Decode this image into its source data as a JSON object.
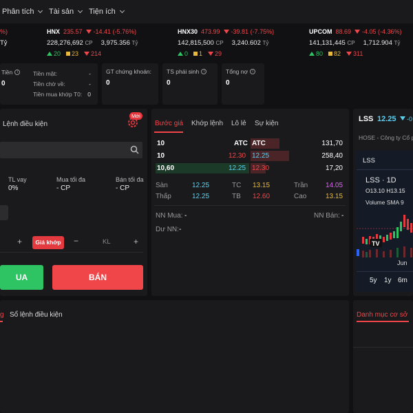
{
  "nav": {
    "items": [
      "Phân tích",
      "Tài sản",
      "Tiện ích"
    ]
  },
  "indices": [
    {
      "name": "HNX",
      "value": "235.57",
      "change": "-14.41 (-5.76%)",
      "volume": "228,276,692",
      "vol_unit": "CP",
      "turnover": "3,975.356",
      "turn_unit": "Tỷ",
      "up": "20",
      "flat": "23",
      "down": "214"
    },
    {
      "name": "HNX30",
      "value": "473.99",
      "change": "-39.81 (-7.75%)",
      "volume": "142,815,500",
      "vol_unit": "CP",
      "turnover": "3,240.602",
      "turn_unit": "Tỷ",
      "up": "0",
      "flat": "1",
      "down": "29"
    },
    {
      "name": "UPCOM",
      "value": "88.69",
      "change": "-4.05 (-4.36%)",
      "volume": "141,131,445",
      "vol_unit": "CP",
      "turnover": "1,712.904",
      "turn_unit": "Tỷ",
      "up": "80",
      "flat": "82",
      "down": "311"
    }
  ],
  "first_index_tail": {
    "change": "%)",
    "unit": "Tỷ"
  },
  "account": {
    "tien_label": "Tiền",
    "tien_value": "0",
    "tien_mat_label": "Tiền mặt:",
    "tien_mat_value": "-",
    "tien_cho_ve_label": "Tiền chờ về:",
    "tien_cho_ve_value": "-",
    "tien_mua_khop_label": "Tiền mua khớp T0:",
    "tien_mua_khop_value": "0",
    "gt_ck_label": "GT chứng khoán:",
    "gt_ck_value": "0",
    "ts_ps_label": "TS phái sinh",
    "ts_ps_value": "0",
    "tong_no_label": "Tổng nợ",
    "tong_no_value": "0"
  },
  "order": {
    "title": "Lệnh điều kiện",
    "badge": "Mới",
    "tl_vay_label": "TL vay",
    "tl_vay_value": "0%",
    "mua_toi_da_label": "Mua tối đa",
    "mua_toi_da_value": "- CP",
    "ban_toi_da_label": "Bán tối đa",
    "ban_toi_da_value": "- CP",
    "price_btn": "Giá khớp",
    "qty_placeholder": "KL",
    "buy_label": "UA",
    "sell_label": "BÁN"
  },
  "depth": {
    "tabs": [
      "Bước giá",
      "Khớp lệnh",
      "Lô lẻ",
      "Sự kiện"
    ],
    "rows": [
      {
        "bid_vol": "10",
        "bid_price": "ATC",
        "ask_price": "ATC",
        "ask_vol": "131,70"
      },
      {
        "bid_vol": "10",
        "bid_price": "12.30",
        "ask_price": "12.25",
        "ask_vol": "258,40"
      },
      {
        "bid_vol": "10,60",
        "bid_price": "12.25",
        "ask_price": "12.30",
        "ask_vol": "17,20"
      }
    ],
    "san_label": "Sàn",
    "san_value": "12.25",
    "tc_label": "TC",
    "tc_value": "13.15",
    "tran_label": "Trần",
    "tran_value": "14.05",
    "thap_label": "Thấp",
    "thap_value": "12.25",
    "tb_label": "TB",
    "tb_value": "12.60",
    "cao_label": "Cao",
    "cao_value": "13.15",
    "nn_mua_label": "NN Mua:",
    "nn_mua_value": "-",
    "nn_ban_label": "NN Bán:",
    "nn_ban_value": "-",
    "du_nn_label": "Dư NN:",
    "du_nn_value": "-"
  },
  "chart": {
    "symbol": "LSS",
    "price": "12.25",
    "change_tail": "-0",
    "company": "HOSE - Công ty Cổ p",
    "tab_label": "LSS",
    "series_title": "LSS · 1D",
    "ohlc": "O13.10 H13.15",
    "volume_label": "Volume SMA 9",
    "month_label": "Jun",
    "ranges": [
      "5y",
      "1y",
      "6m"
    ]
  },
  "bottom": {
    "tab_left_tail": "g",
    "tab_conditional": "Sổ lệnh điều kiện",
    "tab_portfolio": "Danh mục cơ sở"
  }
}
